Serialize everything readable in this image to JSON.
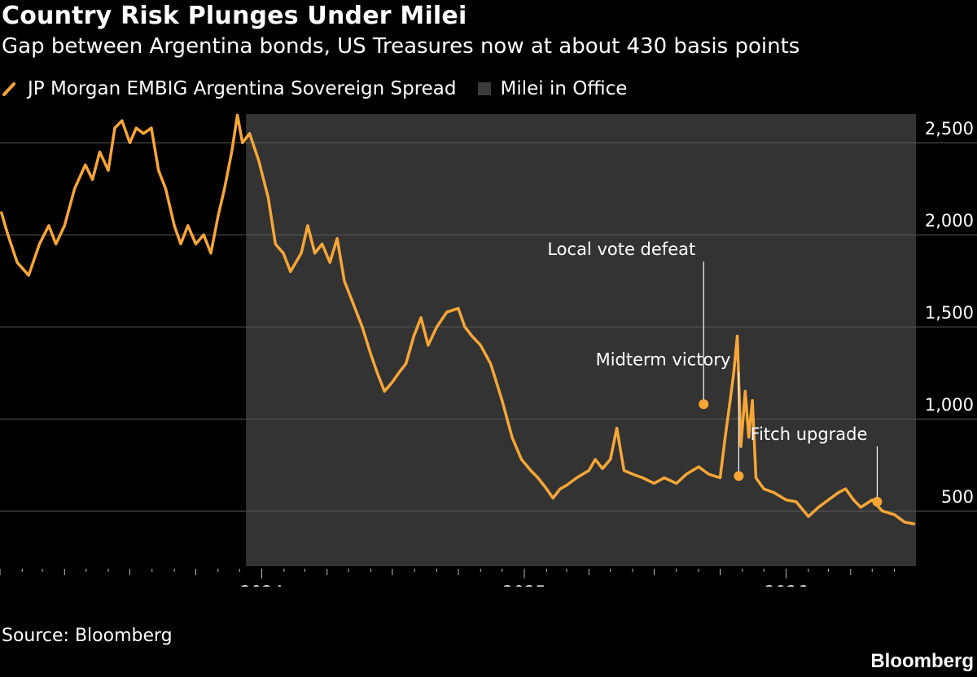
{
  "header": {
    "title": "Country Risk Plunges Under Milei",
    "subtitle": "Gap between Argentina bonds, US Treasures now at about 430 basis points"
  },
  "legend": {
    "series_label": "JP Morgan EMBIG Argentina Sovereign Spread",
    "shade_label": "Milei in Office"
  },
  "footer": {
    "source": "Source: Bloomberg",
    "brand": "Bloomberg"
  },
  "colors": {
    "background": "#000000",
    "line": "#f9a637",
    "shade": "#333333",
    "grid": "#5a5a5a",
    "text": "#ffffff"
  },
  "chart_data": {
    "type": "line",
    "title": "Country Risk Plunges Under Milei",
    "subtitle": "Gap between Argentina bonds, US Treasures now at about 430 basis points",
    "xlabel": "",
    "ylabel": "",
    "x_range": [
      "2023-01-01",
      "2026-06-30"
    ],
    "ylim": [
      200,
      2700
    ],
    "y_ticks": [
      500,
      1000,
      1500,
      2000,
      2500
    ],
    "y_tick_labels": [
      "500",
      "1,000",
      "1,500",
      "2,000",
      "2,500"
    ],
    "x_ticks": [
      "2024-01-01",
      "2025-01-01",
      "2026-01-01"
    ],
    "x_tick_labels": [
      "2024",
      "2025",
      "2026"
    ],
    "grid": "horizontal",
    "legend_position": "top-left",
    "shaded_region": {
      "label": "Milei in Office",
      "start": "2023-12-10",
      "end": "2026-06-30"
    },
    "series": [
      {
        "name": "JP Morgan EMBIG Argentina Sovereign Spread",
        "points": [
          [
            "2023-01-03",
            2120
          ],
          [
            "2023-01-12",
            2000
          ],
          [
            "2023-01-25",
            1850
          ],
          [
            "2023-02-10",
            1780
          ],
          [
            "2023-02-25",
            1950
          ],
          [
            "2023-03-10",
            2050
          ],
          [
            "2023-03-20",
            1950
          ],
          [
            "2023-04-01",
            2050
          ],
          [
            "2023-04-15",
            2250
          ],
          [
            "2023-04-30",
            2380
          ],
          [
            "2023-05-10",
            2300
          ],
          [
            "2023-05-20",
            2450
          ],
          [
            "2023-06-01",
            2350
          ],
          [
            "2023-06-10",
            2580
          ],
          [
            "2023-06-20",
            2620
          ],
          [
            "2023-07-01",
            2500
          ],
          [
            "2023-07-10",
            2580
          ],
          [
            "2023-07-20",
            2550
          ],
          [
            "2023-07-31",
            2580
          ],
          [
            "2023-08-10",
            2350
          ],
          [
            "2023-08-20",
            2250
          ],
          [
            "2023-09-01",
            2050
          ],
          [
            "2023-09-10",
            1950
          ],
          [
            "2023-09-20",
            2050
          ],
          [
            "2023-10-01",
            1950
          ],
          [
            "2023-10-12",
            2000
          ],
          [
            "2023-10-22",
            1900
          ],
          [
            "2023-11-01",
            2100
          ],
          [
            "2023-11-10",
            2250
          ],
          [
            "2023-11-20",
            2450
          ],
          [
            "2023-11-28",
            2650
          ],
          [
            "2023-12-05",
            2500
          ],
          [
            "2023-12-15",
            2550
          ],
          [
            "2023-12-28",
            2400
          ],
          [
            "2024-01-10",
            2200
          ],
          [
            "2024-01-20",
            1950
          ],
          [
            "2024-01-31",
            1900
          ],
          [
            "2024-02-10",
            1800
          ],
          [
            "2024-02-25",
            1900
          ],
          [
            "2024-03-05",
            2050
          ],
          [
            "2024-03-15",
            1900
          ],
          [
            "2024-03-25",
            1950
          ],
          [
            "2024-04-05",
            1850
          ],
          [
            "2024-04-15",
            1980
          ],
          [
            "2024-04-25",
            1750
          ],
          [
            "2024-05-05",
            1650
          ],
          [
            "2024-05-20",
            1500
          ],
          [
            "2024-06-01",
            1350
          ],
          [
            "2024-06-10",
            1250
          ],
          [
            "2024-06-20",
            1150
          ],
          [
            "2024-07-01",
            1200
          ],
          [
            "2024-07-10",
            1250
          ],
          [
            "2024-07-20",
            1300
          ],
          [
            "2024-07-31",
            1450
          ],
          [
            "2024-08-10",
            1550
          ],
          [
            "2024-08-20",
            1400
          ],
          [
            "2024-09-01",
            1500
          ],
          [
            "2024-09-15",
            1580
          ],
          [
            "2024-10-01",
            1600
          ],
          [
            "2024-10-10",
            1500
          ],
          [
            "2024-10-20",
            1450
          ],
          [
            "2024-11-01",
            1400
          ],
          [
            "2024-11-15",
            1300
          ],
          [
            "2024-12-01",
            1100
          ],
          [
            "2024-12-15",
            900
          ],
          [
            "2024-12-28",
            780
          ],
          [
            "2025-01-10",
            720
          ],
          [
            "2025-01-20",
            680
          ],
          [
            "2025-02-01",
            620
          ],
          [
            "2025-02-10",
            570
          ],
          [
            "2025-02-20",
            620
          ],
          [
            "2025-03-01",
            640
          ],
          [
            "2025-03-15",
            680
          ],
          [
            "2025-04-01",
            720
          ],
          [
            "2025-04-10",
            780
          ],
          [
            "2025-04-20",
            730
          ],
          [
            "2025-05-01",
            780
          ],
          [
            "2025-05-10",
            950
          ],
          [
            "2025-05-20",
            720
          ],
          [
            "2025-06-01",
            700
          ],
          [
            "2025-06-15",
            680
          ],
          [
            "2025-07-01",
            650
          ],
          [
            "2025-07-15",
            680
          ],
          [
            "2025-08-01",
            650
          ],
          [
            "2025-08-15",
            700
          ],
          [
            "2025-09-01",
            740
          ],
          [
            "2025-09-15",
            700
          ],
          [
            "2025-10-01",
            680
          ],
          [
            "2025-10-08",
            900
          ],
          [
            "2025-10-15",
            1100
          ],
          [
            "2025-10-20",
            1250
          ],
          [
            "2025-10-25",
            1450
          ],
          [
            "2025-10-30",
            850
          ],
          [
            "2025-11-05",
            1150
          ],
          [
            "2025-11-10",
            900
          ],
          [
            "2025-11-15",
            1100
          ],
          [
            "2025-11-20",
            680
          ],
          [
            "2025-12-01",
            620
          ],
          [
            "2025-12-15",
            600
          ],
          [
            "2026-01-01",
            560
          ],
          [
            "2026-01-15",
            550
          ],
          [
            "2026-02-01",
            470
          ],
          [
            "2026-02-15",
            520
          ],
          [
            "2026-03-01",
            560
          ],
          [
            "2026-03-15",
            600
          ],
          [
            "2026-03-25",
            620
          ],
          [
            "2026-04-05",
            560
          ],
          [
            "2026-04-15",
            520
          ],
          [
            "2026-05-01",
            560
          ],
          [
            "2026-05-15",
            500
          ],
          [
            "2026-06-01",
            480
          ],
          [
            "2026-06-15",
            440
          ],
          [
            "2026-06-28",
            430
          ]
        ]
      }
    ],
    "annotations": [
      {
        "label": "Local vote defeat",
        "date": "2025-09-08",
        "value": 1080
      },
      {
        "label": "Midterm victory",
        "date": "2025-10-27",
        "value": 690
      },
      {
        "label": "Fitch upgrade",
        "date": "2026-05-08",
        "value": 550
      }
    ]
  }
}
